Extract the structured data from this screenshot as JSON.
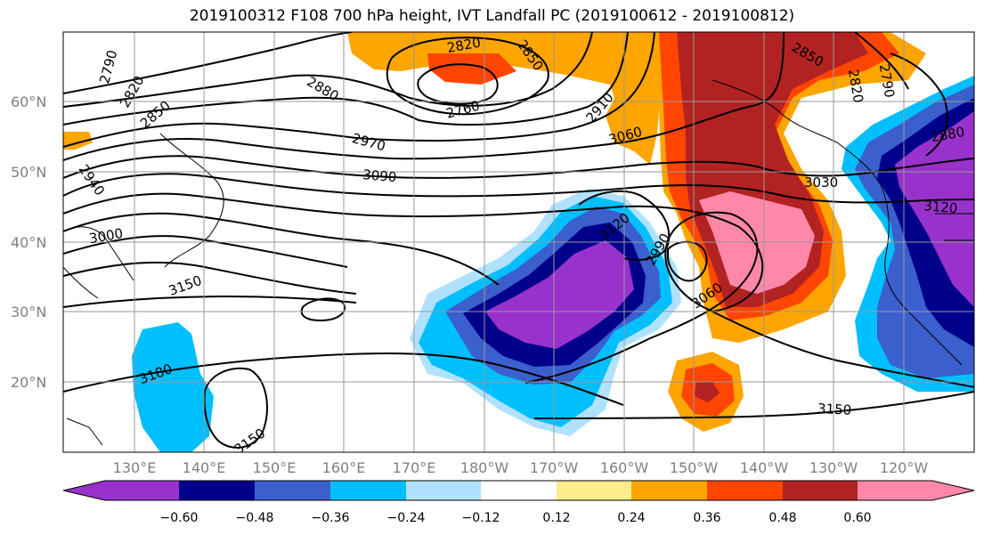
{
  "title": "2019100312 F108 700 hPa height, IVT Landfall PC (2019100612 - 2019100812)",
  "lat_labels": [
    "60°N",
    "50°N",
    "40°N",
    "30°N",
    "20°N"
  ],
  "lon_labels": [
    "130°E",
    "140°E",
    "150°E",
    "160°E",
    "170°E",
    "180°W",
    "170°W",
    "160°W",
    "150°W",
    "140°W",
    "130°W",
    "120°W"
  ],
  "colorbar": {
    "tick_labels": [
      "-0.60",
      "-0.48",
      "-0.36",
      "-0.24",
      "-0.12",
      "0.12",
      "0.24",
      "0.36",
      "0.48",
      "0.60"
    ],
    "colors": [
      "#9932cc",
      "#00008b",
      "#3b5fcd",
      "#00bfff",
      "#b0e2ff",
      "#ffffff",
      "#ffec8b",
      "#ffa500",
      "#ff4500",
      "#b22222",
      "#ff88aa"
    ]
  },
  "contour_labels": [
    "2790",
    "2820",
    "2850",
    "2880",
    "2970",
    "2760",
    "2820",
    "2850",
    "2910",
    "3060",
    "2850",
    "2820",
    "2790",
    "2940",
    "3000",
    "3090",
    "3030",
    "2880",
    "3120",
    "3120",
    "2990",
    "3060",
    "3150",
    "3180",
    "3150",
    "3150"
  ]
}
